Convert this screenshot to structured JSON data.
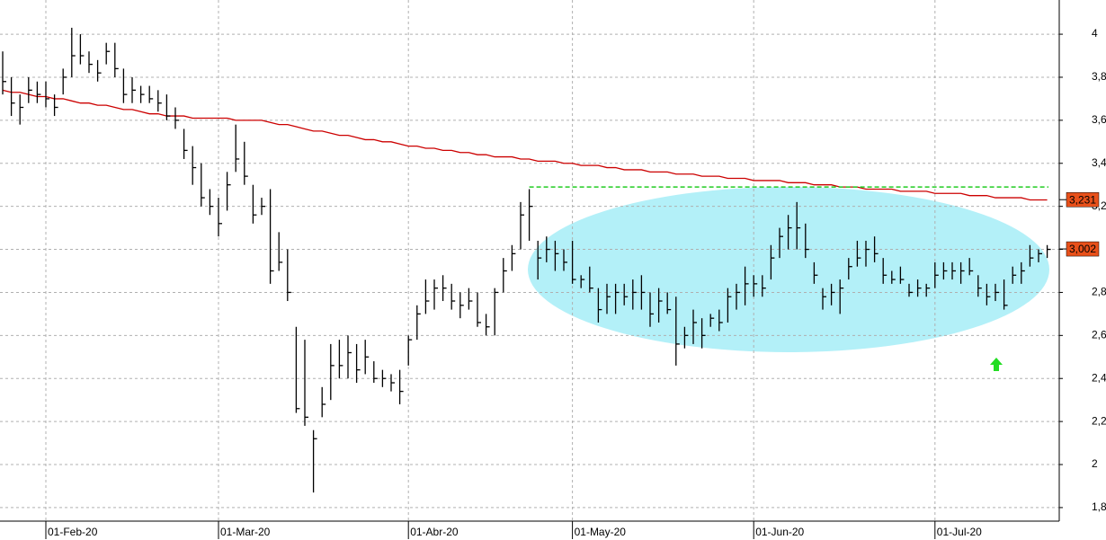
{
  "chart_data": {
    "type": "hlc",
    "categories": [
      null,
      null,
      null,
      null,
      null,
      "01-Feb-20",
      null,
      null,
      null,
      null,
      null,
      null,
      null,
      null,
      null,
      null,
      null,
      null,
      null,
      null,
      null,
      null,
      null,
      null,
      null,
      "01-Mar-20",
      null,
      null,
      null,
      null,
      null,
      null,
      null,
      null,
      null,
      null,
      null,
      null,
      null,
      null,
      null,
      null,
      null,
      null,
      null,
      null,
      null,
      "01-Abr-20",
      null,
      null,
      null,
      null,
      null,
      null,
      null,
      null,
      null,
      null,
      null,
      null,
      null,
      null,
      null,
      null,
      null,
      null,
      "01-May-20",
      null,
      null,
      null,
      null,
      null,
      null,
      null,
      null,
      null,
      null,
      null,
      null,
      null,
      null,
      null,
      null,
      null,
      null,
      null,
      null,
      "01-Jun-20",
      null,
      null,
      null,
      null,
      null,
      null,
      null,
      null,
      null,
      null,
      null,
      null,
      null,
      null,
      null,
      null,
      null,
      null,
      null,
      null,
      "01-Jul-20",
      null,
      null,
      null,
      null,
      null,
      null,
      null,
      null,
      null,
      null,
      null,
      null,
      null
    ],
    "high": [
      3.92,
      3.8,
      3.72,
      3.8,
      3.78,
      3.78,
      3.72,
      3.84,
      4.03,
      4.0,
      3.92,
      3.88,
      3.96,
      3.96,
      3.84,
      3.8,
      3.76,
      3.76,
      3.74,
      3.72,
      3.66,
      3.56,
      3.48,
      3.4,
      3.28,
      3.24,
      3.36,
      3.58,
      3.5,
      3.3,
      3.24,
      3.28,
      3.08,
      3.0,
      2.64,
      2.58,
      2.16,
      2.36,
      2.56,
      2.58,
      2.6,
      2.56,
      2.58,
      2.48,
      2.44,
      2.42,
      2.44,
      2.6,
      2.74,
      2.86,
      2.86,
      2.88,
      2.84,
      2.8,
      2.82,
      2.8,
      2.7,
      2.82,
      2.96,
      3.02,
      3.22,
      3.28,
      3.04,
      3.06,
      3.04,
      3.0,
      3.04,
      2.88,
      2.92,
      2.82,
      2.84,
      2.84,
      2.84,
      2.86,
      2.88,
      2.8,
      2.82,
      2.8,
      2.78,
      2.64,
      2.72,
      2.68,
      2.7,
      2.72,
      2.82,
      2.84,
      2.92,
      2.88,
      2.88,
      3.02,
      3.1,
      3.16,
      3.22,
      3.12,
      2.94,
      2.82,
      2.84,
      2.86,
      2.96,
      3.04,
      3.04,
      3.06,
      2.96,
      2.9,
      2.92,
      2.84,
      2.86,
      2.84,
      2.94,
      2.94,
      2.94,
      2.94,
      2.96,
      2.88,
      2.84,
      2.84,
      2.86,
      2.92,
      2.94,
      3.02,
      3.0,
      3.02
    ],
    "low": [
      3.72,
      3.62,
      3.58,
      3.68,
      3.68,
      3.66,
      3.62,
      3.72,
      3.8,
      3.86,
      3.82,
      3.78,
      3.86,
      3.8,
      3.68,
      3.68,
      3.68,
      3.68,
      3.64,
      3.6,
      3.56,
      3.42,
      3.3,
      3.2,
      3.16,
      3.06,
      3.18,
      3.36,
      3.3,
      3.12,
      3.16,
      2.84,
      2.9,
      2.76,
      2.24,
      2.18,
      1.87,
      2.22,
      2.3,
      2.4,
      2.4,
      2.38,
      2.42,
      2.38,
      2.36,
      2.34,
      2.28,
      2.46,
      2.58,
      2.7,
      2.72,
      2.76,
      2.72,
      2.68,
      2.72,
      2.64,
      2.6,
      2.6,
      2.8,
      2.9,
      3.0,
      3.04,
      2.86,
      2.94,
      2.9,
      2.9,
      2.84,
      2.82,
      2.8,
      2.66,
      2.7,
      2.7,
      2.74,
      2.72,
      2.72,
      2.64,
      2.66,
      2.7,
      2.46,
      2.54,
      2.56,
      2.54,
      2.64,
      2.62,
      2.66,
      2.72,
      2.74,
      2.78,
      2.78,
      2.86,
      2.96,
      3.0,
      3.0,
      2.96,
      2.84,
      2.72,
      2.74,
      2.7,
      2.86,
      2.92,
      2.92,
      2.94,
      2.84,
      2.84,
      2.84,
      2.78,
      2.78,
      2.78,
      2.82,
      2.86,
      2.86,
      2.84,
      2.88,
      2.78,
      2.74,
      2.76,
      2.72,
      2.84,
      2.84,
      2.92,
      2.94,
      2.96
    ],
    "close": [
      3.78,
      3.68,
      3.66,
      3.74,
      3.72,
      3.7,
      3.66,
      3.8,
      3.9,
      3.9,
      3.86,
      3.82,
      3.92,
      3.84,
      3.72,
      3.74,
      3.72,
      3.7,
      3.68,
      3.62,
      3.6,
      3.46,
      3.38,
      3.24,
      3.2,
      3.12,
      3.3,
      3.42,
      3.34,
      3.16,
      3.2,
      2.9,
      2.94,
      2.8,
      2.26,
      2.22,
      2.12,
      2.28,
      2.46,
      2.46,
      2.52,
      2.44,
      2.5,
      2.4,
      2.4,
      2.38,
      2.34,
      2.58,
      2.7,
      2.76,
      2.82,
      2.82,
      2.76,
      2.74,
      2.76,
      2.66,
      2.64,
      2.8,
      2.9,
      2.98,
      3.16,
      3.2,
      2.96,
      3.0,
      2.98,
      2.94,
      2.86,
      2.86,
      2.82,
      2.72,
      2.78,
      2.8,
      2.78,
      2.8,
      2.8,
      2.7,
      2.76,
      2.72,
      2.56,
      2.6,
      2.66,
      2.6,
      2.68,
      2.66,
      2.78,
      2.8,
      2.84,
      2.84,
      2.82,
      2.96,
      3.06,
      3.1,
      3.1,
      3.0,
      2.88,
      2.78,
      2.8,
      2.82,
      2.92,
      2.96,
      3.0,
      2.98,
      2.88,
      2.86,
      2.86,
      2.8,
      2.82,
      2.82,
      2.88,
      2.9,
      2.9,
      2.9,
      2.9,
      2.82,
      2.78,
      2.8,
      2.74,
      2.88,
      2.9,
      2.96,
      2.98,
      3.0
    ],
    "bar_color": "#000000",
    "lines": [
      {
        "type": "line",
        "color": "#cc0000",
        "values": [
          3.74,
          3.73,
          3.73,
          3.72,
          3.71,
          3.71,
          3.7,
          3.7,
          3.69,
          3.68,
          3.68,
          3.67,
          3.67,
          3.66,
          3.65,
          3.65,
          3.64,
          3.63,
          3.63,
          3.62,
          3.62,
          3.62,
          3.61,
          3.61,
          3.61,
          3.61,
          3.61,
          3.6,
          3.6,
          3.6,
          3.6,
          3.59,
          3.58,
          3.58,
          3.57,
          3.56,
          3.55,
          3.55,
          3.54,
          3.53,
          3.53,
          3.52,
          3.51,
          3.51,
          3.5,
          3.5,
          3.49,
          3.48,
          3.48,
          3.47,
          3.47,
          3.46,
          3.46,
          3.45,
          3.45,
          3.44,
          3.44,
          3.43,
          3.43,
          3.43,
          3.42,
          3.42,
          3.41,
          3.41,
          3.41,
          3.4,
          3.4,
          3.39,
          3.39,
          3.39,
          3.38,
          3.38,
          3.37,
          3.37,
          3.37,
          3.36,
          3.36,
          3.36,
          3.35,
          3.35,
          3.35,
          3.34,
          3.34,
          3.34,
          3.33,
          3.33,
          3.33,
          3.32,
          3.32,
          3.32,
          3.32,
          3.31,
          3.31,
          3.31,
          3.3,
          3.3,
          3.3,
          3.29,
          3.29,
          3.29,
          3.28,
          3.28,
          3.28,
          3.28,
          3.27,
          3.27,
          3.27,
          3.27,
          3.26,
          3.26,
          3.26,
          3.26,
          3.25,
          3.25,
          3.25,
          3.24,
          3.24,
          3.24,
          3.24,
          3.23,
          3.23,
          3.23
        ]
      }
    ],
    "resistance": {
      "value": 3.29,
      "color": "#22cc22",
      "from": 61
    },
    "price_labels": [
      {
        "value": 3.231,
        "label": "3,231",
        "color": "#e8501a"
      },
      {
        "value": 3.002,
        "label": "3,002",
        "color": "#e8501a"
      }
    ],
    "ylim": [
      1.737,
      4.159
    ],
    "yticks": [
      {
        "value": 1.8,
        "label": "1,8"
      },
      2,
      {
        "value": 2.2,
        "label": "2,2"
      },
      {
        "value": 2.4,
        "label": "2,4"
      },
      {
        "value": 2.6,
        "label": "2,6"
      },
      {
        "value": 2.8,
        "label": "2,8"
      },
      3,
      {
        "value": 3.2,
        "label": "3,2"
      },
      {
        "value": 3.4,
        "label": "3,4"
      },
      {
        "value": 3.6,
        "label": "3,6"
      },
      {
        "value": 3.8,
        "label": "3,8"
      },
      4
    ],
    "grid": true
  }
}
